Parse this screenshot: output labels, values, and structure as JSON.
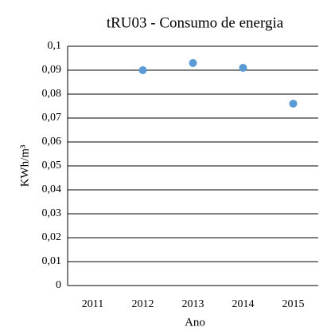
{
  "chart_data": {
    "type": "scatter",
    "title": "tRU03 - Consumo de energia",
    "x_label": "Ano",
    "y_label": "KWh/m³",
    "categories": [
      "2011",
      "2012",
      "2013",
      "2014",
      "2015"
    ],
    "values": [
      null,
      0.09,
      0.093,
      0.091,
      0.076
    ],
    "color": "#5b9bd5",
    "ylim": [
      0,
      0.1
    ],
    "yticks": [
      0,
      {
        "value": 0.01,
        "label": "0,01"
      },
      {
        "value": 0.02,
        "label": "0,02"
      },
      {
        "value": 0.03,
        "label": "0,03"
      },
      {
        "value": 0.04,
        "label": "0,04"
      },
      {
        "value": 0.05,
        "label": "0,05"
      },
      {
        "value": 0.06,
        "label": "0,06"
      },
      {
        "value": 0.07,
        "label": "0,07"
      },
      {
        "value": 0.08,
        "label": "0,08"
      },
      {
        "value": 0.09,
        "label": "0,09"
      },
      {
        "value": 0.1,
        "label": "0,1"
      }
    ],
    "grid": true
  }
}
